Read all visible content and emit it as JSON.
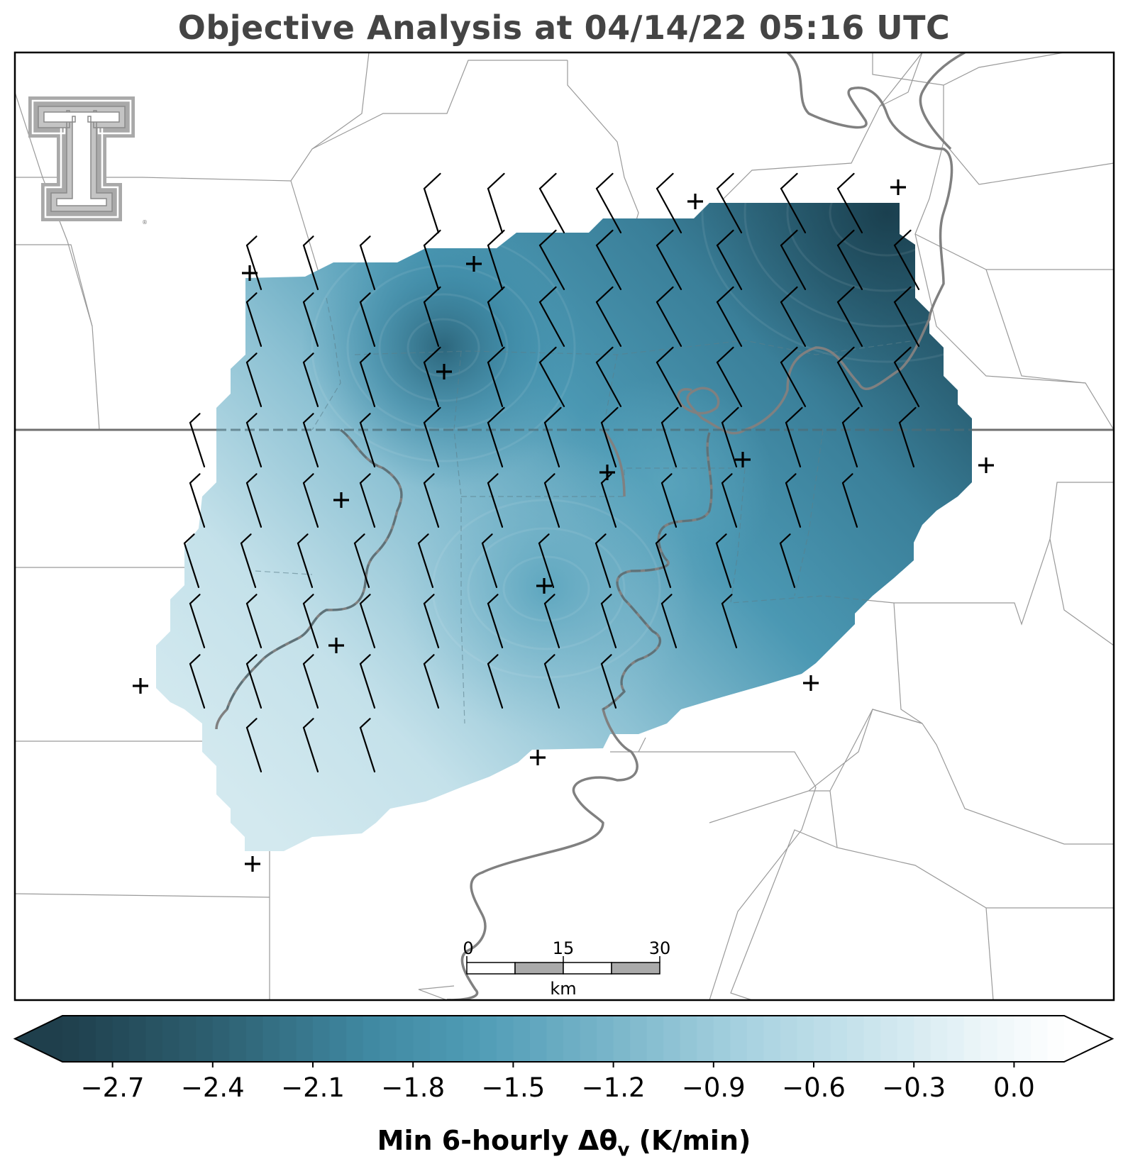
{
  "title": "Objective Analysis at 04/14/22 05:16 UTC",
  "colorbar": {
    "label_main": "Min 6-hourly Δθ",
    "label_sub": "v",
    "label_units": " (K/min)",
    "ticks": [
      "−2.7",
      "−2.4",
      "−2.1",
      "−1.8",
      "−1.5",
      "−1.2",
      "−0.9",
      "−0.6",
      "−0.3",
      "0.0"
    ],
    "tick_values": [
      -2.7,
      -2.4,
      -2.1,
      -1.8,
      -1.5,
      -1.2,
      -0.9,
      -0.6,
      -0.3,
      0.0
    ],
    "range": [
      -2.85,
      0.15
    ],
    "extend": "both",
    "colors": {
      "min": "#1f3f4c",
      "mid": "#4a9ab4",
      "max": "#ffffff"
    }
  },
  "scalebar": {
    "labels": [
      "0",
      "15",
      "30"
    ],
    "units": "km"
  },
  "logo": {
    "name": "Texas Tech Double T",
    "color": "#a9a9a9"
  },
  "colors": {
    "boundary_thin": "#9a9a9a",
    "boundary_thick": "#707070",
    "river": "#808080",
    "field_dark": "#2a5a6e",
    "field_mid": "#4a96b2",
    "field_light": "#cde6ee",
    "station_marker": "#000000",
    "barb": "#000000"
  },
  "stations": [
    {
      "name": "station-1"
    },
    {
      "name": "station-2"
    },
    {
      "name": "station-3"
    },
    {
      "name": "station-4"
    },
    {
      "name": "station-5"
    },
    {
      "name": "station-6"
    },
    {
      "name": "station-7"
    },
    {
      "name": "station-8"
    },
    {
      "name": "station-9"
    },
    {
      "name": "station-10"
    },
    {
      "name": "station-11"
    },
    {
      "name": "station-12"
    },
    {
      "name": "station-13"
    },
    {
      "name": "station-14"
    },
    {
      "name": "station-15"
    },
    {
      "name": "station-16"
    }
  ]
}
